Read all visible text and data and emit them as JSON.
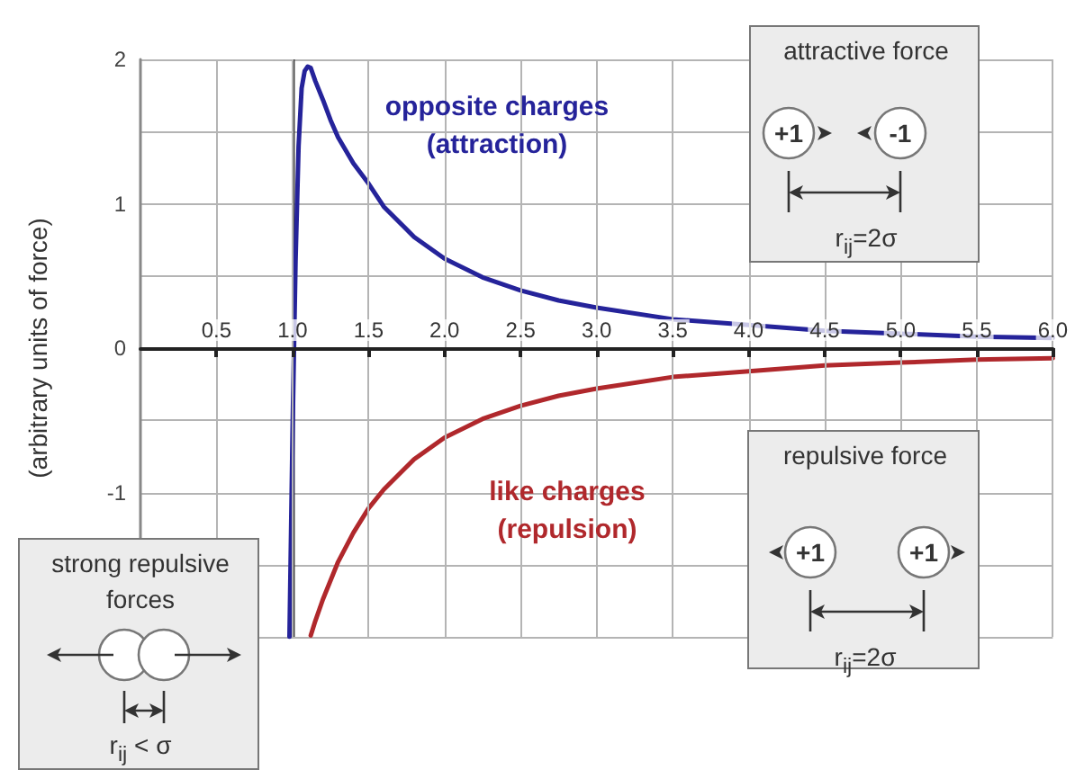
{
  "chart_data": {
    "type": "line",
    "ylabel": "(arbitrary units of force)",
    "xlim": [
      0,
      6
    ],
    "xticks": [
      {
        "value": 0.5,
        "label": "0.5"
      },
      {
        "value": 1,
        "label": "1.0"
      },
      {
        "value": 1.5,
        "label": "1.5"
      },
      {
        "value": 2,
        "label": "2.0"
      },
      {
        "value": 2.5,
        "label": "2.5"
      },
      {
        "value": 3,
        "label": "3.0"
      },
      {
        "value": 3.5,
        "label": "3.5"
      },
      {
        "value": 4,
        "label": "4.0"
      },
      {
        "value": 4.5,
        "label": "4.5"
      },
      {
        "value": 5,
        "label": "5.0"
      },
      {
        "value": 5.5,
        "label": "5.5"
      },
      {
        "value": 6,
        "label": "6.0"
      }
    ],
    "ylim": [
      -2,
      2
    ],
    "yticks": [
      {
        "value": -2,
        "label": null
      },
      {
        "value": -1.5,
        "label": null
      },
      -1,
      {
        "value": -0.5,
        "label": null
      },
      0,
      {
        "value": 0.5,
        "label": null
      },
      1,
      {
        "value": 1.5,
        "label": null
      },
      2
    ],
    "grid": true,
    "legend": false,
    "marker": "none",
    "line_style": "solid",
    "series": [
      {
        "name": "opposite charges (attraction)",
        "color": "#25239a",
        "x": [
          0.98,
          1.0,
          1.02,
          1.04,
          1.06,
          1.08,
          1.1,
          1.12,
          1.15,
          1.2,
          1.25,
          1.3,
          1.4,
          1.5,
          1.6,
          1.8,
          2.0,
          2.25,
          2.5,
          2.75,
          3,
          3.5,
          4,
          4.5,
          5,
          5.5,
          6
        ],
        "values": [
          -2,
          -0.6,
          0.6,
          1.4,
          1.8,
          1.92,
          1.95,
          1.94,
          1.85,
          1.72,
          1.58,
          1.46,
          1.28,
          1.14,
          0.98,
          0.77,
          0.62,
          0.49,
          0.4,
          0.33,
          0.28,
          0.2,
          0.16,
          0.12,
          0.1,
          0.08,
          0.07
        ]
      },
      {
        "name": "like charges (repulsion)",
        "color": "#b0282c",
        "x": [
          1.12,
          1.15,
          1.2,
          1.3,
          1.4,
          1.5,
          1.6,
          1.8,
          2,
          2.25,
          2.5,
          2.75,
          3,
          3.5,
          4,
          4.5,
          5,
          5.5,
          6
        ],
        "values": [
          -1.99,
          -1.89,
          -1.74,
          -1.48,
          -1.28,
          -1.11,
          -0.98,
          -0.77,
          -0.62,
          -0.49,
          -0.4,
          -0.33,
          -0.28,
          -0.2,
          -0.16,
          -0.12,
          -0.1,
          -0.08,
          -0.07
        ]
      }
    ],
    "ref_lines": [
      {
        "axis": "x",
        "value": 1,
        "color": "#444444"
      }
    ],
    "annotations": [
      "attractive force",
      "+1",
      "-1",
      "r$_{ij}$=2σ",
      "repulsive force",
      "+1",
      "+1",
      "r$_{ij}$=2σ",
      "strong repulsive forces",
      "r$_{ij}$ < σ"
    ]
  }
}
